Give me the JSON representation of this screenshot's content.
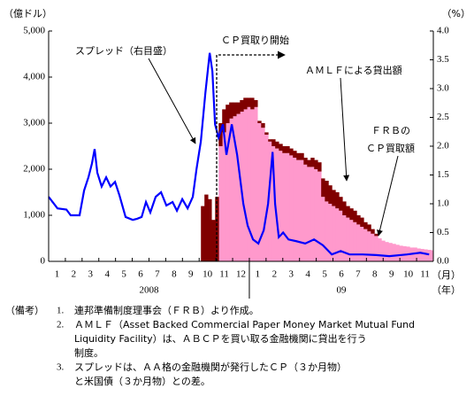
{
  "chart_data": {
    "type": "bar",
    "y_unit_label": "（億ドル）",
    "y2_unit_label": "（%）",
    "x_month_unit": "（月）",
    "x_year_unit": "（年）",
    "categories": [
      "1",
      "2",
      "3",
      "4",
      "5",
      "6",
      "7",
      "8",
      "9",
      "10",
      "11",
      "12",
      "1",
      "2",
      "3",
      "4",
      "5",
      "6",
      "7",
      "8",
      "9",
      "10",
      "11"
    ],
    "years": [
      {
        "label": "2008",
        "from": 0,
        "to": 12
      },
      {
        "label": "09",
        "from": 12,
        "to": 23
      }
    ],
    "xlim": [
      0,
      23
    ],
    "ylim": [
      0,
      5000
    ],
    "yticks": [
      0,
      {
        "value": 1000,
        "label": "1,000"
      },
      {
        "value": 2000,
        "label": "2,000"
      },
      {
        "value": 3000,
        "label": "3,000"
      },
      {
        "value": 4000,
        "label": "4,000"
      },
      {
        "value": 5000,
        "label": "5,000"
      }
    ],
    "y2lim": [
      0,
      4
    ],
    "y2ticks": [
      {
        "value": 0,
        "label": "0.0"
      },
      {
        "value": 0.5,
        "label": "0.5"
      },
      {
        "value": 1,
        "label": "1.0"
      },
      {
        "value": 1.5,
        "label": "1.5"
      },
      {
        "value": 2,
        "label": "2.0"
      },
      {
        "value": 2.5,
        "label": "2.5"
      },
      {
        "value": 3,
        "label": "3.0"
      },
      {
        "value": 3.5,
        "label": "3.5"
      },
      {
        "value": 4,
        "label": "4.0"
      }
    ],
    "bar_width": 0.21,
    "series": [
      {
        "name": "ＦＲＢのＣＰ買取額",
        "type": "bar",
        "color": "#ff99cc",
        "x": [
          9.21,
          9.42,
          9.63,
          9.84,
          10.06,
          10.27,
          10.48,
          10.69,
          10.9,
          11.11,
          11.33,
          11.54,
          11.75,
          11.96,
          12.17,
          12.38,
          12.6,
          12.81,
          13.02,
          13.23,
          13.44,
          13.65,
          13.87,
          14.08,
          14.29,
          14.5,
          14.71,
          14.92,
          15.14,
          15.35,
          15.56,
          15.77,
          15.98,
          16.19,
          16.4,
          16.62,
          16.83,
          17.04,
          17.25,
          17.46,
          17.67,
          17.89,
          18.1,
          18.31,
          18.52,
          18.73,
          18.94,
          19.16,
          19.37,
          19.58,
          19.79,
          20.0,
          20.21,
          20.43,
          20.64,
          20.85,
          21.06,
          21.27,
          21.48,
          21.7,
          21.91,
          22.12,
          22.33,
          22.54,
          22.75,
          22.96
        ],
        "values": [
          0,
          0,
          0,
          0,
          0,
          2500,
          2800,
          3000,
          3100,
          3150,
          3200,
          3250,
          3300,
          3350,
          3300,
          3350,
          3000,
          2900,
          2750,
          2600,
          2500,
          2450,
          2400,
          2350,
          2350,
          2300,
          2250,
          2200,
          2200,
          2100,
          2050,
          2050,
          2000,
          1950,
          1400,
          1300,
          1250,
          1200,
          1150,
          1100,
          1000,
          950,
          900,
          850,
          800,
          750,
          700,
          650,
          600,
          550,
          500,
          450,
          420,
          400,
          380,
          360,
          340,
          330,
          320,
          300,
          300,
          280,
          270,
          260,
          250,
          240
        ]
      },
      {
        "name": "ＡＭＬＦによる貸出額",
        "type": "bar",
        "color": "#800000",
        "x": [
          9.21,
          9.42,
          9.63,
          9.84,
          10.06,
          10.27,
          10.48,
          10.69,
          10.9,
          11.11,
          11.33,
          11.54,
          11.75,
          11.96,
          12.17,
          12.38,
          12.6,
          12.81,
          13.02,
          13.23,
          13.44,
          13.65,
          13.87,
          14.08,
          14.29,
          14.5,
          14.71,
          14.92,
          15.14,
          15.35,
          15.56,
          15.77,
          15.98,
          16.19,
          16.4,
          16.62,
          16.83,
          17.04,
          17.25,
          17.46,
          17.67,
          17.89,
          18.1,
          18.31,
          18.52,
          18.73,
          18.94,
          19.16,
          19.37,
          19.58,
          19.79,
          20.0,
          20.21,
          20.43,
          20.64,
          20.85,
          21.06,
          21.27,
          21.48,
          21.7,
          21.91,
          22.12,
          22.33,
          22.54,
          22.75,
          22.96
        ],
        "values": [
          1200,
          1450,
          1350,
          900,
          1400,
          500,
          500,
          400,
          350,
          300,
          250,
          250,
          250,
          200,
          250,
          150,
          50,
          100,
          50,
          50,
          150,
          150,
          150,
          150,
          150,
          150,
          150,
          150,
          150,
          150,
          150,
          200,
          200,
          200,
          400,
          450,
          400,
          350,
          350,
          300,
          300,
          250,
          250,
          250,
          200,
          200,
          150,
          150,
          100,
          50,
          0,
          0,
          0,
          0,
          0,
          0,
          0,
          0,
          0,
          0,
          0,
          0,
          0,
          0,
          0,
          0
        ]
      },
      {
        "name": "スプレッド（右目盛）",
        "type": "line",
        "axis": "y2",
        "color": "#0000ff",
        "x": [
          0,
          0.53,
          1.06,
          1.32,
          1.85,
          2.12,
          2.38,
          2.59,
          2.75,
          2.91,
          3.17,
          3.44,
          3.7,
          3.97,
          4.23,
          4.6,
          5.03,
          5.29,
          5.56,
          5.82,
          6.08,
          6.4,
          6.72,
          7.04,
          7.41,
          7.67,
          7.99,
          8.31,
          8.62,
          8.84,
          9.1,
          9.37,
          9.63,
          9.79,
          9.95,
          10.16,
          10.42,
          10.63,
          10.95,
          11.27,
          11.64,
          11.9,
          12.22,
          12.54,
          12.86,
          13.12,
          13.39,
          13.54,
          13.76,
          14.02,
          14.34,
          14.81,
          15.34,
          15.87,
          16.4,
          16.93,
          17.46,
          17.99,
          18.78,
          19.58,
          20.37,
          21.43,
          22.22,
          22.75
        ],
        "values": [
          1.12,
          0.92,
          0.9,
          0.8,
          0.8,
          1.23,
          1.46,
          1.7,
          1.95,
          1.54,
          1.3,
          1.46,
          1.3,
          1.38,
          1.15,
          0.77,
          0.72,
          0.74,
          0.77,
          1.03,
          0.85,
          1.12,
          1.2,
          0.97,
          1.03,
          0.88,
          1.08,
          0.92,
          1.12,
          1.6,
          2.08,
          2.92,
          3.62,
          3.3,
          2.38,
          2.15,
          2.38,
          1.85,
          2.38,
          1.85,
          1.0,
          0.62,
          0.38,
          0.31,
          0.54,
          1.0,
          1.9,
          1.0,
          0.42,
          0.5,
          0.38,
          0.35,
          0.31,
          0.38,
          0.28,
          0.12,
          0.18,
          0.12,
          0.12,
          0.11,
          0.09,
          0.12,
          0.15,
          0.12
        ]
      }
    ],
    "annotations": {
      "spread": "スプレッド（右目盛）",
      "cp_start": "ＣＰ買取り開始",
      "amlf": "ＡＭＬＦによる貸出額",
      "frb_1": "ＦＲＢの",
      "frb_2": "ＣＰ買取額"
    },
    "notes": {
      "label": "（備考）",
      "items": [
        {
          "num": "1.",
          "lines": [
            "連邦準備制度理事会（ＦＲＢ）より作成。"
          ]
        },
        {
          "num": "2.",
          "lines": [
            "ＡＭＬＦ（Asset Backed Commercial Paper Money Market Mutual Fund",
            "Liquidity Facility）は、ＡＢＣＰを買い取る金融機関に貸出を行う",
            "制度。"
          ]
        },
        {
          "num": "3.",
          "lines": [
            "スプレッドは、ＡＡ格の金融機関が発行したＣＰ（３か月物）",
            "と米国債（３か月物）との差。"
          ]
        }
      ]
    }
  }
}
